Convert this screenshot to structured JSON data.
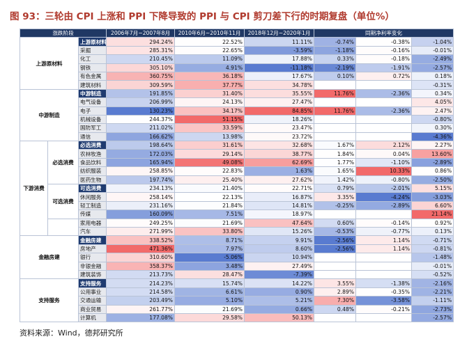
{
  "title": "图 93：三轮由 CPI 上涨和 PPI 下降导致的 PPI 与 CPI 剪刀差下行的时期复盘（单位%）",
  "table": {
    "header": {
      "stage": "涨跌阶段",
      "periods": [
        "2006年7月~2007年8月",
        "2010年6月~2010年11月",
        "2018年12月~2020年1月"
      ],
      "net": "同期净利率变化"
    },
    "groups": [
      {
        "label": "上游原材料",
        "sections": [
          {
            "rows": [
              {
                "name": "上游原材料",
                "bold": true,
                "cells": [
                  "294.24%",
                  "22.52%",
                  "11.11%",
                  "-0.74%",
                  "-0.38%",
                  "-1.04%"
                ]
              },
              {
                "name": "采掘",
                "cells": [
                  "285.31%",
                  "22.65%",
                  "-3.59%",
                  "-1.18%",
                  "-0.16%",
                  "-0.01%"
                ]
              },
              {
                "name": "化工",
                "cells": [
                  "210.45%",
                  "11.09%",
                  "17.88%",
                  "0.33%",
                  "-0.18%",
                  "-2.49%"
                ]
              },
              {
                "name": "钢铁",
                "cells": [
                  "305.10%",
                  "4.91%",
                  "-11.18%",
                  "-2.19%",
                  "-1.91%",
                  "-2.57%"
                ]
              },
              {
                "name": "有色金属",
                "cells": [
                  "360.75%",
                  "36.18%",
                  "17.67%",
                  "0.10%",
                  "0.72%",
                  "0.18%"
                ]
              },
              {
                "name": "建筑材料",
                "cells": [
                  "309.59%",
                  "37.77%",
                  "34.78%",
                  null,
                  null,
                  "-0.31%"
                ]
              }
            ]
          }
        ]
      },
      {
        "label": "中游制造",
        "sections": [
          {
            "rows": [
              {
                "name": "中游制造",
                "bold": true,
                "cells": [
                  "191.85%",
                  "31.40%",
                  "35.55%",
                  "11.76%",
                  "-2.36%",
                  "0.34%"
                ]
              },
              {
                "name": "电气设备",
                "cells": [
                  "206.99%",
                  "24.13%",
                  "27.47%",
                  null,
                  null,
                  "4.05%"
                ]
              },
              {
                "name": "电子",
                "cells": [
                  "130.23%",
                  "34.17%",
                  "84.85%",
                  "11.76%",
                  "-2.36%",
                  "2.47%"
                ]
              },
              {
                "name": "机械设备",
                "cells": [
                  "244.37%",
                  "51.15%",
                  "18.26%",
                  null,
                  null,
                  "-0.80%"
                ]
              },
              {
                "name": "国防军工",
                "cells": [
                  "211.02%",
                  "33.59%",
                  "23.47%",
                  null,
                  null,
                  "0.30%"
                ]
              },
              {
                "name": "通信",
                "cells": [
                  "166.62%",
                  "13.98%",
                  "23.72%",
                  null,
                  null,
                  "-4.36%"
                ]
              }
            ]
          }
        ]
      },
      {
        "label": "下游消费",
        "sections": [
          {
            "label": "必选消费",
            "rows": [
              {
                "name": "必选消费",
                "bold": true,
                "cells": [
                  "198.64%",
                  "31.61%",
                  "32.68%",
                  "1.67%",
                  "2.12%",
                  "2.27%"
                ]
              },
              {
                "name": "农林牧渔",
                "cells": [
                  "172.03%",
                  "29.14%",
                  "38.77%",
                  "1.84%",
                  "0.04%",
                  "13.60%"
                ]
              },
              {
                "name": "食品饮料",
                "cells": [
                  "165.94%",
                  "49.08%",
                  "62.69%",
                  "1.77%",
                  "-1.10%",
                  "-2.89%"
                ]
              },
              {
                "name": "纺织服装",
                "cells": [
                  "258.85%",
                  "22.83%",
                  "1.63%",
                  "1.65%",
                  "10.33%",
                  "0.86%"
                ]
              },
              {
                "name": "医药生物",
                "cells": [
                  "197.74%",
                  "25.40%",
                  "27.62%",
                  "1.42%",
                  "-0.80%",
                  "-2.50%"
                ]
              }
            ]
          },
          {
            "label": "可选消费",
            "rows": [
              {
                "name": "可选消费",
                "bold": true,
                "cells": [
                  "234.13%",
                  "21.40%",
                  "22.71%",
                  "0.79%",
                  "-2.01%",
                  "5.15%"
                ]
              },
              {
                "name": "休闲服务",
                "cells": [
                  "258.14%",
                  "22.13%",
                  "16.87%",
                  "3.35%",
                  "-4.24%",
                  "-3.03%"
                ]
              },
              {
                "name": "轻工制造",
                "cells": [
                  "231.16%",
                  "21.84%",
                  "14.81%",
                  "-0.25%",
                  "-2.89%",
                  "6.60%"
                ]
              },
              {
                "name": "传媒",
                "cells": [
                  "160.09%",
                  "7.51%",
                  "18.97%",
                  null,
                  null,
                  "21.14%"
                ]
              }
            ]
          },
          {
            "rows": [
              {
                "name": "家用电器",
                "cells": [
                  "249.25%",
                  "21.69%",
                  "47.64%",
                  "0.60%",
                  "-0.14%",
                  "0.92%"
                ]
              },
              {
                "name": "汽车",
                "cells": [
                  "271.99%",
                  "33.80%",
                  "15.26%",
                  "-0.53%",
                  "-0.77%",
                  "0.13%"
                ]
              }
            ]
          }
        ]
      },
      {
        "label": "金融房建",
        "sections": [
          {
            "rows": [
              {
                "name": "金融房建",
                "bold": true,
                "cells": [
                  "338.52%",
                  "8.71%",
                  "9.91%",
                  "-2.56%",
                  "1.14%",
                  "-0.71%"
                ]
              },
              {
                "name": "房地产",
                "cells": [
                  "471.36%",
                  "7.97%",
                  "8.60%",
                  "-2.56%",
                  "1.14%",
                  "-0.81%"
                ]
              },
              {
                "name": "银行",
                "cells": [
                  "310.60%",
                  "-5.06%",
                  "10.94%",
                  null,
                  null,
                  "-1.48%"
                ]
              },
              {
                "name": "非银金融",
                "cells": [
                  "358.37%",
                  "3.48%",
                  "27.49%",
                  null,
                  null,
                  "-0.01%"
                ]
              },
              {
                "name": "建筑装饰",
                "cells": [
                  "213.73%",
                  "28.47%",
                  "-7.39%",
                  null,
                  null,
                  "-0.52%"
                ]
              }
            ]
          }
        ]
      },
      {
        "label": "支持服务",
        "sections": [
          {
            "rows": [
              {
                "name": "支持服务",
                "bold": true,
                "cells": [
                  "214.23%",
                  "15.74%",
                  "14.22%",
                  "3.55%",
                  "-1.38%",
                  "-2.16%"
                ]
              },
              {
                "name": "公用事业",
                "cells": [
                  "214.58%",
                  "6.61%",
                  "0.90%",
                  "2.89%",
                  "-0.35%",
                  "-2.21%"
                ]
              },
              {
                "name": "交通运输",
                "cells": [
                  "203.49%",
                  "5.10%",
                  "5.21%",
                  "7.30%",
                  "-3.58%",
                  "-1.11%"
                ]
              },
              {
                "name": "商业贸易",
                "cells": [
                  "261.77%",
                  "21.69%",
                  "0.66%",
                  "0.48%",
                  "-0.21%",
                  "-2.73%"
                ]
              },
              {
                "name": "计算机",
                "cells": [
                  "177.08%",
                  "29.58%",
                  "50.13%",
                  null,
                  null,
                  "-2.57%"
                ]
              }
            ]
          }
        ]
      }
    ]
  },
  "source": "资料来源：Wind，德邦研究所"
}
